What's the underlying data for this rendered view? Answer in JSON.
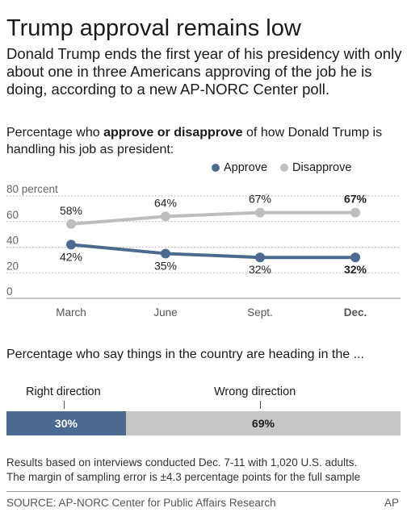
{
  "header": {
    "title": "Trump approval remains low",
    "subtitle": "Donald Trump ends the first year of his presidency with only about one in three Americans approving of the job he is doing, according to a new AP-NORC Center poll."
  },
  "section1": {
    "prefix": "Percentage who ",
    "bold": "approve or disapprove",
    "suffix": " of how Donald Trump is handling his job as president:"
  },
  "legend": [
    {
      "label": "Approve",
      "color": "#4b6a8f"
    },
    {
      "label": "Disapprove",
      "color": "#bdbdbd"
    }
  ],
  "chart_data": {
    "type": "line",
    "categories": [
      "March",
      "June",
      "Sept.",
      "Dec."
    ],
    "series": [
      {
        "name": "Approve",
        "values": [
          42,
          35,
          32,
          32
        ],
        "labels": [
          "42%",
          "35%",
          "32%",
          "32%"
        ],
        "color": "#4b6a8f"
      },
      {
        "name": "Disapprove",
        "values": [
          58,
          64,
          67,
          67
        ],
        "labels": [
          "58%",
          "64%",
          "67%",
          "67%"
        ],
        "color": "#bdbdbd"
      }
    ],
    "y_ticks": [
      0,
      20,
      40,
      60,
      80
    ],
    "y_tick_labels": [
      "0",
      "20",
      "40",
      "60",
      "80 percent"
    ],
    "ylim": [
      0,
      80
    ],
    "grid": "dotted horizontal",
    "legend_position": "top-right",
    "emphasis_last": true
  },
  "section2": {
    "title": "Percentage who say things in the country are heading in the ...",
    "right_label": "Right direction",
    "wrong_label": "Wrong direction",
    "right_value": 30,
    "wrong_value": 69,
    "right_text": "30%",
    "wrong_text": "69%",
    "right_color": "#4b6a8f",
    "wrong_color": "#c6c6c6"
  },
  "footer": {
    "note1": "Results based on interviews conducted Dec. 7-11 with 1,020 U.S. adults.",
    "note2": "The margin of sampling error is ±4.3 percentage points for the full sample",
    "source": "SOURCE: AP-NORC Center for Public Affairs Research",
    "credit": "AP"
  }
}
